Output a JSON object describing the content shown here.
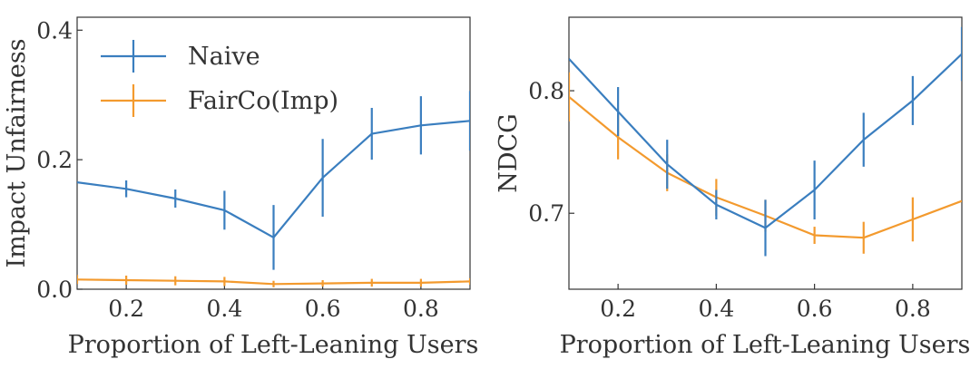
{
  "chart_data": [
    {
      "type": "line",
      "title": "",
      "xlabel": "Proportion of Left-Leaning Users",
      "ylabel": "Impact Unfairness",
      "xlim": [
        0.1,
        0.9
      ],
      "ylim": [
        0.0,
        0.42
      ],
      "xticks": [
        "0.2",
        "0.4",
        "0.6",
        "0.8"
      ],
      "yticks": [
        "0.0",
        "0.2",
        "0.4"
      ],
      "grid": false,
      "legend": "top-left",
      "series": [
        {
          "name": "Naive",
          "color": "#3a7ebf",
          "x": [
            0.1,
            0.2,
            0.3,
            0.4,
            0.5,
            0.6,
            0.7,
            0.8,
            0.9
          ],
          "y": [
            0.165,
            0.155,
            0.14,
            0.122,
            0.08,
            0.172,
            0.24,
            0.253,
            0.26
          ],
          "err": [
            0.0,
            0.013,
            0.014,
            0.03,
            0.05,
            0.06,
            0.04,
            0.045,
            0.046
          ]
        },
        {
          "name": "FairCo(Imp)",
          "color": "#f39a2e",
          "x": [
            0.1,
            0.2,
            0.3,
            0.4,
            0.5,
            0.6,
            0.7,
            0.8,
            0.9
          ],
          "y": [
            0.015,
            0.014,
            0.013,
            0.012,
            0.008,
            0.009,
            0.01,
            0.01,
            0.012
          ],
          "err": [
            0.007,
            0.007,
            0.007,
            0.007,
            0.005,
            0.005,
            0.006,
            0.006,
            0.005
          ]
        }
      ]
    },
    {
      "type": "line",
      "title": "",
      "xlabel": "Proportion of Left-Leaning Users",
      "ylabel": "NDCG",
      "xlim": [
        0.1,
        0.9
      ],
      "ylim": [
        0.638,
        0.86
      ],
      "xticks": [
        "0.2",
        "0.4",
        "0.6",
        "0.8"
      ],
      "yticks": [
        "0.7",
        "0.8"
      ],
      "grid": false,
      "series": [
        {
          "name": "Naive",
          "color": "#3a7ebf",
          "x": [
            0.1,
            0.2,
            0.3,
            0.4,
            0.5,
            0.6,
            0.7,
            0.8,
            0.9
          ],
          "y": [
            0.826,
            0.783,
            0.74,
            0.707,
            0.688,
            0.719,
            0.76,
            0.792,
            0.83
          ],
          "err": [
            0.0,
            0.02,
            0.02,
            0.012,
            0.023,
            0.024,
            0.022,
            0.02,
            0.022
          ]
        },
        {
          "name": "FairCo(Imp)",
          "color": "#f39a2e",
          "x": [
            0.1,
            0.2,
            0.3,
            0.4,
            0.5,
            0.6,
            0.7,
            0.8,
            0.9
          ],
          "y": [
            0.795,
            0.762,
            0.733,
            0.713,
            0.698,
            0.682,
            0.68,
            0.695,
            0.71
          ],
          "err": [
            0.02,
            0.018,
            0.015,
            0.015,
            0.013,
            0.007,
            0.013,
            0.018,
            0.0
          ]
        }
      ]
    }
  ]
}
